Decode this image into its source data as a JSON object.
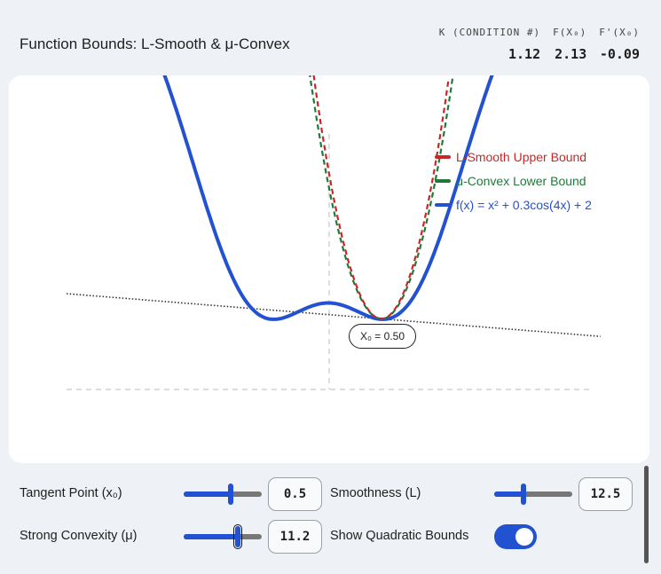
{
  "header": {
    "title": "Function Bounds: L-Smooth & μ-Convex",
    "stats": [
      {
        "label": "K (CONDITION #)",
        "value": "1.12"
      },
      {
        "label": "F(X₀)",
        "value": "2.13"
      },
      {
        "label": "F'(X₀)",
        "value": "-0.09"
      }
    ]
  },
  "legend": {
    "upper": "L-Smooth Upper Bound",
    "lower": "μ-Convex Lower Bound",
    "func": "f(x) = x² + 0.3cos(4x) + 2"
  },
  "tangent_badge": "X₀ = 0.50",
  "colors": {
    "upper": "#c62828",
    "lower": "#1f7a3a",
    "func": "#2251d1",
    "tangent": "#333333"
  },
  "chart_data": {
    "type": "line",
    "x0": 0.5,
    "L": 12.5,
    "mu": 11.2,
    "f_x0": 2.13,
    "fp_x0": -0.09,
    "series": [
      {
        "name": "L-Smooth Upper Bound",
        "style": "dashed"
      },
      {
        "name": "μ-Convex Lower Bound",
        "style": "dashed"
      },
      {
        "name": "f(x) = x² + 0.3cos(4x) + 2",
        "style": "solid"
      }
    ],
    "grid": false,
    "legend_position": "top-right"
  },
  "controls": {
    "tangent": {
      "label": "Tangent Point (x₀)",
      "value": "0.5",
      "fraction": 0.6
    },
    "smoothness": {
      "label": "Smoothness (L)",
      "value": "12.5",
      "fraction": 0.38
    },
    "convexity": {
      "label": "Strong Convexity (μ)",
      "value": "11.2",
      "fraction": 0.69
    },
    "toggle": {
      "label": "Show Quadratic Bounds",
      "on": true
    }
  }
}
